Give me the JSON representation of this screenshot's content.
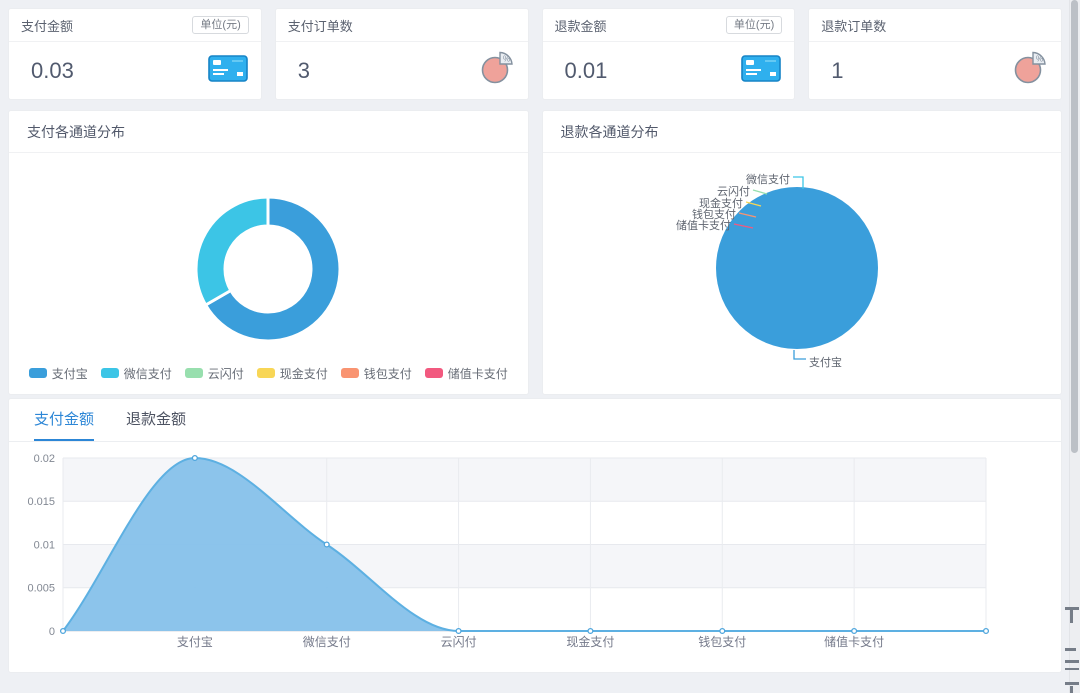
{
  "stat_cards": [
    {
      "title": "支付金额",
      "badge": "单位(元)",
      "value": "0.03",
      "icon": "credit-card-icon"
    },
    {
      "title": "支付订单数",
      "value": "3",
      "icon": "pie-percent-icon"
    },
    {
      "title": "退款金额",
      "badge": "单位(元)",
      "value": "0.01",
      "icon": "credit-card-icon"
    },
    {
      "title": "退款订单数",
      "value": "1",
      "icon": "pie-percent-icon"
    }
  ],
  "chart_data": [
    {
      "id": "payment-channel-distribution",
      "type": "pie",
      "variant": "donut",
      "title": "支付各通道分布",
      "legend_position": "bottom",
      "series": [
        {
          "name": "支付宝",
          "value": 0.02,
          "color": "#3a9edb"
        },
        {
          "name": "微信支付",
          "value": 0.01,
          "color": "#3cc5e6"
        },
        {
          "name": "云闪付",
          "value": 0,
          "color": "#98dfae"
        },
        {
          "name": "现金支付",
          "value": 0,
          "color": "#f8d656"
        },
        {
          "name": "钱包支付",
          "value": 0,
          "color": "#f99471"
        },
        {
          "name": "储值卡支付",
          "value": 0,
          "color": "#f2597f"
        }
      ]
    },
    {
      "id": "refund-channel-distribution",
      "type": "pie",
      "variant": "pie",
      "title": "退款各通道分布",
      "labels": "outside",
      "series": [
        {
          "name": "支付宝",
          "value": 0.01,
          "color": "#3a9edb"
        },
        {
          "name": "微信支付",
          "value": 0,
          "color": "#3cc5e6"
        },
        {
          "name": "云闪付",
          "value": 0,
          "color": "#98dfae"
        },
        {
          "name": "现金支付",
          "value": 0,
          "color": "#f8d656"
        },
        {
          "name": "钱包支付",
          "value": 0,
          "color": "#f99471"
        },
        {
          "name": "储值卡支付",
          "value": 0,
          "color": "#f2597f"
        }
      ]
    },
    {
      "id": "amount-trend",
      "type": "area",
      "tabs": [
        "支付金额",
        "退款金额"
      ],
      "active_tab_index": 0,
      "categories": [
        "支付宝",
        "微信支付",
        "云闪付",
        "现金支付",
        "钱包支付",
        "储值卡支付"
      ],
      "values": [
        0.02,
        0.01,
        0,
        0,
        0,
        0
      ],
      "yticks": [
        0,
        0.005,
        0.01,
        0.015,
        0.02
      ],
      "ylim": [
        0,
        0.02
      ],
      "grid": true,
      "split_area": true,
      "line_color": "#5db0e2",
      "fill_color": "#86c1ea",
      "marker_fill": "#ffffff"
    }
  ],
  "ui_colors": {
    "active_tab": "#2c86d6",
    "page_bg": "#eef0f4"
  }
}
